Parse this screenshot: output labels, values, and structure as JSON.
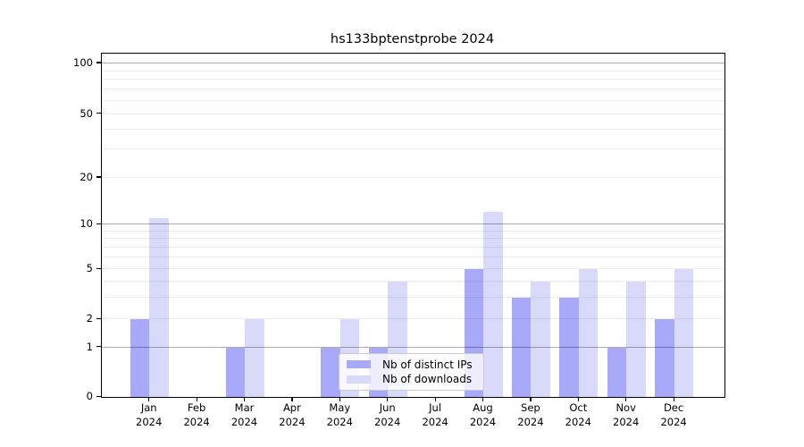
{
  "figure": {
    "title": "hs133bptenstprobe 2024"
  },
  "legend": {
    "items": [
      {
        "label": "Nb of distinct IPs",
        "color": "#a9a9fa"
      },
      {
        "label": "Nb of downloads",
        "color": "#d9d9fa"
      }
    ]
  },
  "axes": {
    "y_tick_labels": [
      "0",
      "1",
      "2",
      "5",
      "10",
      "20",
      "50",
      "100"
    ],
    "x_tick_year": "2024",
    "x_tick_months": [
      "Jan",
      "Feb",
      "Mar",
      "Apr",
      "May",
      "Jun",
      "Jul",
      "Aug",
      "Sep",
      "Oct",
      "Nov",
      "Dec"
    ]
  },
  "chart_data": {
    "type": "bar",
    "title": "hs133bptenstprobe 2024",
    "categories": [
      "Jan 2024",
      "Feb 2024",
      "Mar 2024",
      "Apr 2024",
      "May 2024",
      "Jun 2024",
      "Jul 2024",
      "Aug 2024",
      "Sep 2024",
      "Oct 2024",
      "Nov 2024",
      "Dec 2024"
    ],
    "series": [
      {
        "name": "Nb of distinct IPs",
        "color": "#a9a9fa",
        "values": [
          2,
          0,
          1,
          0,
          1,
          1,
          0,
          5,
          3,
          3,
          1,
          2
        ]
      },
      {
        "name": "Nb of downloads",
        "color": "#d9d9fa",
        "values": [
          11,
          0,
          2,
          0,
          2,
          4,
          0,
          12,
          4,
          5,
          4,
          5
        ]
      }
    ],
    "xlabel": "",
    "ylabel": "",
    "yscale": "symlog",
    "yticks": [
      0,
      1,
      2,
      5,
      10,
      20,
      50,
      100
    ],
    "ylim": [
      0,
      115
    ],
    "grid": "horizontal major at 1,10,100; minor at 2-9, 20-90",
    "legend_position": "inside lower-center"
  }
}
